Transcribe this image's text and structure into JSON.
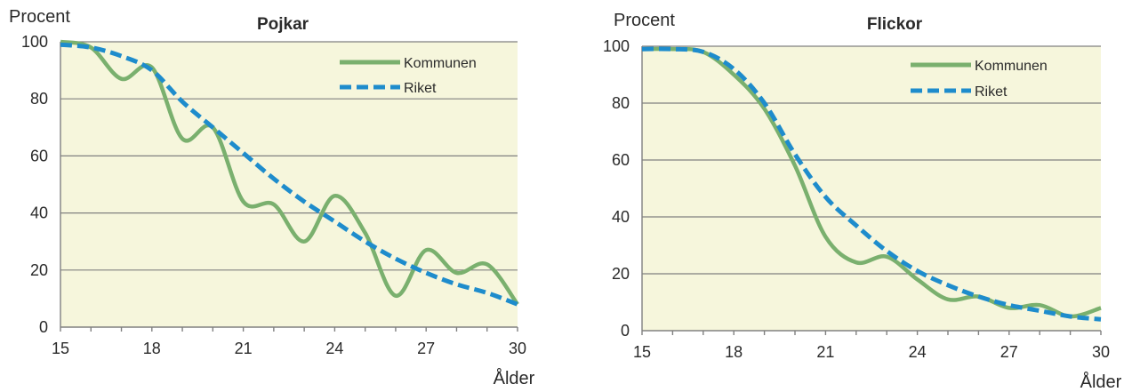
{
  "chart_data": [
    {
      "type": "line",
      "title": "Pojkar",
      "ylabel": "Procent",
      "xlabel": "Ålder",
      "xlim": [
        15,
        30
      ],
      "ylim": [
        0,
        100
      ],
      "xticks": [
        "15",
        "18",
        "21",
        "24",
        "27",
        "30"
      ],
      "yticks": [
        "0",
        "20",
        "40",
        "60",
        "80",
        "100"
      ],
      "plot_background": "#f6f6dc",
      "legend_position": "top-right",
      "series": [
        {
          "name": "Kommunen",
          "color": "#7ab06e",
          "style": "solid",
          "x": [
            15,
            16,
            17,
            18,
            19,
            20,
            21,
            22,
            23,
            24,
            25,
            26,
            27,
            28,
            29,
            30
          ],
          "y": [
            100,
            98,
            87,
            91,
            66,
            70,
            44,
            43,
            30,
            46,
            33,
            11,
            27,
            19,
            22,
            8
          ]
        },
        {
          "name": "Riket",
          "color": "#1e8ccc",
          "style": "dashed",
          "x": [
            15,
            16,
            17,
            18,
            19,
            20,
            21,
            22,
            23,
            24,
            25,
            26,
            27,
            28,
            29,
            30
          ],
          "y": [
            99,
            98,
            95,
            90,
            79,
            70,
            61,
            52,
            44,
            37,
            30,
            24,
            19,
            15,
            12,
            8
          ]
        }
      ]
    },
    {
      "type": "line",
      "title": "Flickor",
      "ylabel": "Procent",
      "xlabel": "Ålder",
      "xlim": [
        15,
        30
      ],
      "ylim": [
        0,
        100
      ],
      "xticks": [
        "15",
        "18",
        "21",
        "24",
        "27",
        "30"
      ],
      "yticks": [
        "0",
        "20",
        "40",
        "60",
        "80",
        "100"
      ],
      "plot_background": "#f6f6dc",
      "legend_position": "top-right",
      "series": [
        {
          "name": "Kommunen",
          "color": "#7ab06e",
          "style": "solid",
          "x": [
            15,
            16,
            17,
            18,
            19,
            20,
            21,
            22,
            23,
            24,
            25,
            26,
            27,
            28,
            29,
            30
          ],
          "y": [
            99,
            99,
            98,
            90,
            78,
            58,
            33,
            24,
            26,
            18,
            11,
            12,
            8,
            9,
            5,
            8
          ]
        },
        {
          "name": "Riket",
          "color": "#1e8ccc",
          "style": "dashed",
          "x": [
            15,
            16,
            17,
            18,
            19,
            20,
            21,
            22,
            23,
            24,
            25,
            26,
            27,
            28,
            29,
            30
          ],
          "y": [
            99,
            99,
            98,
            92,
            80,
            62,
            47,
            37,
            28,
            21,
            16,
            12,
            9,
            7,
            5,
            4
          ]
        }
      ]
    }
  ]
}
